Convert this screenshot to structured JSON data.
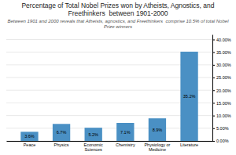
{
  "chart_data": {
    "type": "bar",
    "title": "Percentage of Total Nobel Prizes won by Atheists, Agnostics, and\nFreethinkers  between 1901-2000",
    "subtitle": "Between 1901 and 2000 reveals that Atheists, agnostics, and Freethinkers  comprise 10.5% of total Nobel Prize winners",
    "categories": [
      "Peace",
      "Physics",
      "Economic\nSciences",
      "Chemistry",
      "Physiology or\nMedicine",
      "Literature"
    ],
    "values": [
      3.6,
      6.7,
      5.2,
      7.1,
      8.9,
      35.2
    ],
    "value_labels": [
      "3.6%",
      "6.7%",
      "5.2%",
      "7.1%",
      "8.9%",
      "35.2%"
    ],
    "color": "#4A90C4",
    "ylim": [
      0,
      42
    ],
    "yticks": [
      {
        "value": 0,
        "label": "0.00%"
      },
      {
        "value": 5,
        "label": "5.00%"
      },
      {
        "value": 10,
        "label": "10.00%"
      },
      {
        "value": 15,
        "label": "15.00%"
      },
      {
        "value": 20,
        "label": "20.00%"
      },
      {
        "value": 25,
        "label": "25.00%"
      },
      {
        "value": 30,
        "label": "30.00%"
      },
      {
        "value": 35,
        "label": "35.00%"
      },
      {
        "value": 40,
        "label": "40.00%"
      }
    ],
    "grid": true,
    "data_labels": true
  }
}
